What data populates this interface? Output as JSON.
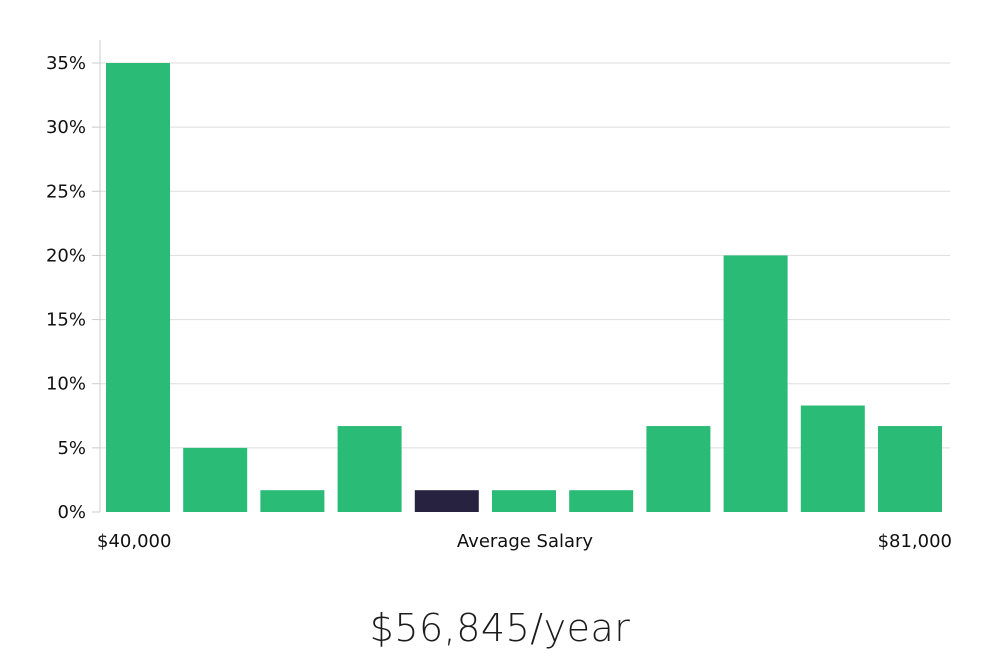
{
  "chart_data": {
    "type": "bar",
    "title": "",
    "xlabel": "Average Salary",
    "ylabel": "",
    "x_min_label": "$40,000",
    "x_max_label": "$81,000",
    "ylim": [
      0,
      35
    ],
    "y_ticks": [
      0,
      5,
      10,
      15,
      20,
      25,
      30,
      35
    ],
    "y_tick_suffix": "%",
    "values": [
      35,
      5,
      1.7,
      6.7,
      1.7,
      1.7,
      1.7,
      6.7,
      20,
      8.3,
      6.7
    ],
    "highlight_index": 4,
    "colors": {
      "bar": "#2abb76",
      "highlight": "#26223f",
      "grid": "#dddddd",
      "axis": "#cccccc"
    }
  },
  "summary": {
    "salary_text": "$56,845/year"
  }
}
